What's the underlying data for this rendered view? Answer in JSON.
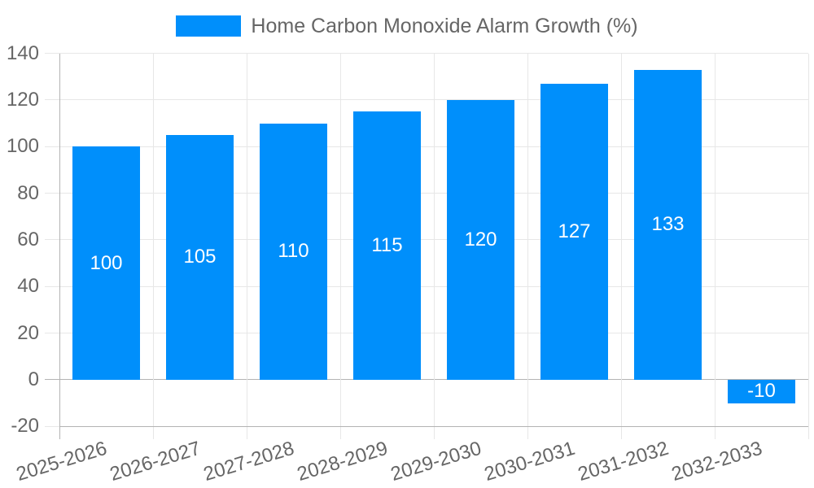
{
  "chart_data": {
    "type": "bar",
    "title": "Home Carbon Monoxide Alarm Growth (%)",
    "legend_position": "top",
    "categories": [
      "2025-2026",
      "2026-2027",
      "2027-2028",
      "2028-2029",
      "2029-2030",
      "2030-2031",
      "2031-2032",
      "2032-2033"
    ],
    "values": [
      100,
      105,
      110,
      115,
      120,
      127,
      133,
      -10
    ],
    "value_labels": [
      "100",
      "105",
      "110",
      "115",
      "120",
      "127",
      "133",
      "-10"
    ],
    "ylabel": "",
    "xlabel": "",
    "ylim": [
      -20,
      140
    ],
    "ytick_step": 20,
    "ytick_labels": [
      "140",
      "120",
      "100",
      "80",
      "60",
      "40",
      "20",
      "0",
      "-20"
    ],
    "grid": true,
    "bar_color": "#008ffb",
    "value_label_color": "#ffffff",
    "axis_text_color": "#666666",
    "gridline_color": "#e7e7e7",
    "zero_line_color": "#b3b3b3",
    "background_color": "#ffffff"
  }
}
